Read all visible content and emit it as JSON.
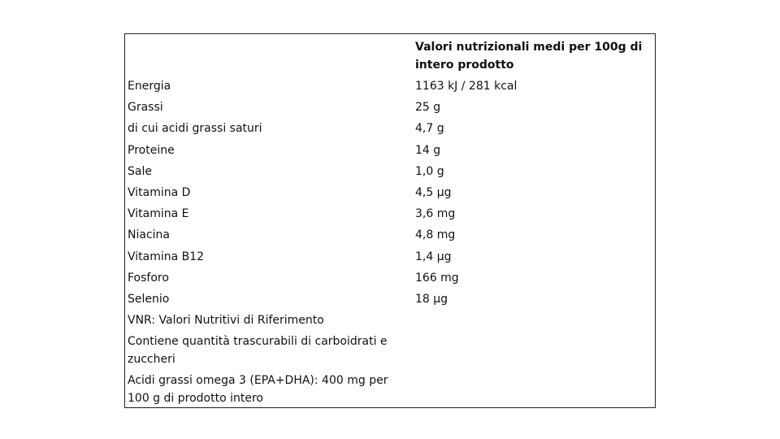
{
  "table": {
    "column_title": "Valori nutrizionali medi per 100g di intero prodotto",
    "rows": [
      [
        "Energia",
        "1163 kJ / 281 kcal"
      ],
      [
        "Grassi",
        "25 g"
      ],
      [
        "di cui acidi grassi saturi",
        "4,7 g"
      ],
      [
        "Proteine",
        "14 g"
      ],
      [
        "Sale",
        "1,0 g"
      ],
      [
        "Vitamina D",
        "4,5 µg"
      ],
      [
        "Vitamina E",
        "3,6 mg"
      ],
      [
        "Niacina",
        "4,8 mg"
      ],
      [
        "Vitamina B12",
        "1,4 µg"
      ],
      [
        "Fosforo",
        "166 mg"
      ],
      [
        "Selenio",
        "18 µg"
      ]
    ],
    "notes": [
      "VNR: Valori Nutritivi di Riferimento",
      "Contiene quantità trascurabili di carboidrati e zuccheri",
      "Acidi grassi omega 3 (EPA+DHA): 400 mg per 100 g di prodotto intero"
    ]
  }
}
